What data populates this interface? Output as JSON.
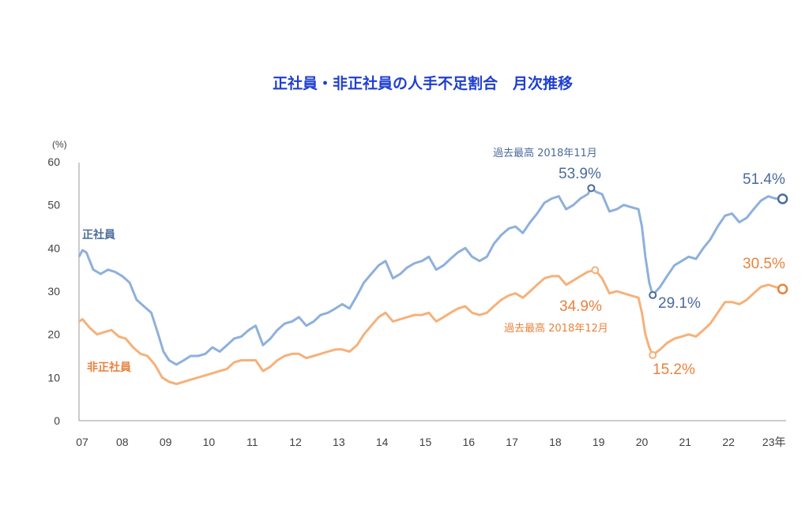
{
  "colors": {
    "regular": "#8eb0dc",
    "non_regular": "#f5b17a",
    "regular_text": "#4a6b9b",
    "non_regular_text": "#e8823c",
    "title": "#1f3fd0"
  },
  "chart_data": {
    "type": "line",
    "title": "正社員・非正社員の人手不足割合　月次推移",
    "y_unit": "(%)",
    "ylim": [
      0,
      60
    ],
    "y_ticks": [
      "0",
      "10",
      "20",
      "30",
      "40",
      "50",
      "60"
    ],
    "x_tick_labels": [
      "07",
      "08",
      "09",
      "10",
      "11",
      "12",
      "13",
      "14",
      "15",
      "16",
      "17",
      "18",
      "19",
      "20",
      "21",
      "22",
      "23年"
    ],
    "x_range": [
      2007.0,
      2023.33
    ],
    "grid": false,
    "series": [
      {
        "name": "正社員",
        "points": [
          [
            2007.0,
            38
          ],
          [
            2007.08,
            39.5
          ],
          [
            2007.17,
            39
          ],
          [
            2007.33,
            35
          ],
          [
            2007.5,
            34
          ],
          [
            2007.67,
            35
          ],
          [
            2007.83,
            34.5
          ],
          [
            2008.0,
            33.5
          ],
          [
            2008.17,
            32
          ],
          [
            2008.33,
            28
          ],
          [
            2008.5,
            26.5
          ],
          [
            2008.67,
            25
          ],
          [
            2008.83,
            20
          ],
          [
            2008.95,
            16
          ],
          [
            2009.08,
            14
          ],
          [
            2009.25,
            13
          ],
          [
            2009.42,
            14
          ],
          [
            2009.58,
            15
          ],
          [
            2009.75,
            15
          ],
          [
            2009.92,
            15.5
          ],
          [
            2010.08,
            17
          ],
          [
            2010.25,
            16
          ],
          [
            2010.42,
            17.5
          ],
          [
            2010.58,
            19
          ],
          [
            2010.75,
            19.5
          ],
          [
            2010.92,
            21
          ],
          [
            2011.08,
            22
          ],
          [
            2011.25,
            17.5
          ],
          [
            2011.42,
            19
          ],
          [
            2011.58,
            21
          ],
          [
            2011.75,
            22.5
          ],
          [
            2011.92,
            23
          ],
          [
            2012.08,
            24
          ],
          [
            2012.25,
            22
          ],
          [
            2012.42,
            23
          ],
          [
            2012.58,
            24.5
          ],
          [
            2012.75,
            25
          ],
          [
            2012.92,
            26
          ],
          [
            2013.08,
            27
          ],
          [
            2013.25,
            26
          ],
          [
            2013.42,
            29
          ],
          [
            2013.58,
            32
          ],
          [
            2013.75,
            34
          ],
          [
            2013.92,
            36
          ],
          [
            2014.08,
            37
          ],
          [
            2014.25,
            33
          ],
          [
            2014.42,
            34
          ],
          [
            2014.58,
            35.5
          ],
          [
            2014.75,
            36.5
          ],
          [
            2014.92,
            37
          ],
          [
            2015.08,
            38
          ],
          [
            2015.25,
            35
          ],
          [
            2015.42,
            36
          ],
          [
            2015.58,
            37.5
          ],
          [
            2015.75,
            39
          ],
          [
            2015.92,
            40
          ],
          [
            2016.08,
            38
          ],
          [
            2016.25,
            37
          ],
          [
            2016.42,
            38
          ],
          [
            2016.58,
            41
          ],
          [
            2016.75,
            43
          ],
          [
            2016.92,
            44.5
          ],
          [
            2017.08,
            45
          ],
          [
            2017.25,
            43.5
          ],
          [
            2017.42,
            46
          ],
          [
            2017.58,
            48
          ],
          [
            2017.75,
            50.5
          ],
          [
            2017.92,
            51.5
          ],
          [
            2018.08,
            52
          ],
          [
            2018.25,
            49
          ],
          [
            2018.42,
            50
          ],
          [
            2018.58,
            51.5
          ],
          [
            2018.75,
            52.5
          ],
          [
            2018.83,
            53.9
          ],
          [
            2018.95,
            53
          ],
          [
            2019.08,
            52.5
          ],
          [
            2019.25,
            48.5
          ],
          [
            2019.42,
            49
          ],
          [
            2019.58,
            50
          ],
          [
            2019.75,
            49.5
          ],
          [
            2019.92,
            49
          ],
          [
            2020.0,
            45
          ],
          [
            2020.08,
            38
          ],
          [
            2020.17,
            32
          ],
          [
            2020.25,
            29.1
          ],
          [
            2020.42,
            31
          ],
          [
            2020.58,
            33.5
          ],
          [
            2020.75,
            36
          ],
          [
            2020.92,
            37
          ],
          [
            2021.08,
            38
          ],
          [
            2021.25,
            37.5
          ],
          [
            2021.42,
            40
          ],
          [
            2021.58,
            42
          ],
          [
            2021.75,
            45
          ],
          [
            2021.92,
            47.5
          ],
          [
            2022.08,
            48
          ],
          [
            2022.25,
            46
          ],
          [
            2022.42,
            47
          ],
          [
            2022.58,
            49
          ],
          [
            2022.75,
            51
          ],
          [
            2022.92,
            52
          ],
          [
            2023.08,
            51.5
          ],
          [
            2023.25,
            51.4
          ]
        ]
      },
      {
        "name": "非正社員",
        "points": [
          [
            2007.0,
            23
          ],
          [
            2007.08,
            23.5
          ],
          [
            2007.25,
            21.5
          ],
          [
            2007.42,
            20
          ],
          [
            2007.58,
            20.5
          ],
          [
            2007.75,
            21
          ],
          [
            2007.92,
            19.5
          ],
          [
            2008.08,
            19
          ],
          [
            2008.25,
            17
          ],
          [
            2008.42,
            15.5
          ],
          [
            2008.58,
            15
          ],
          [
            2008.75,
            13
          ],
          [
            2008.92,
            10
          ],
          [
            2009.08,
            9
          ],
          [
            2009.25,
            8.5
          ],
          [
            2009.42,
            9
          ],
          [
            2009.58,
            9.5
          ],
          [
            2009.75,
            10
          ],
          [
            2009.92,
            10.5
          ],
          [
            2010.08,
            11
          ],
          [
            2010.25,
            11.5
          ],
          [
            2010.42,
            12
          ],
          [
            2010.58,
            13.5
          ],
          [
            2010.75,
            14
          ],
          [
            2010.92,
            14
          ],
          [
            2011.08,
            14
          ],
          [
            2011.25,
            11.5
          ],
          [
            2011.42,
            12.5
          ],
          [
            2011.58,
            14
          ],
          [
            2011.75,
            15
          ],
          [
            2011.92,
            15.5
          ],
          [
            2012.08,
            15.5
          ],
          [
            2012.25,
            14.5
          ],
          [
            2012.42,
            15
          ],
          [
            2012.58,
            15.5
          ],
          [
            2012.75,
            16
          ],
          [
            2012.92,
            16.5
          ],
          [
            2013.08,
            16.5
          ],
          [
            2013.25,
            16
          ],
          [
            2013.42,
            17.5
          ],
          [
            2013.58,
            20
          ],
          [
            2013.75,
            22
          ],
          [
            2013.92,
            24
          ],
          [
            2014.08,
            25
          ],
          [
            2014.25,
            23
          ],
          [
            2014.42,
            23.5
          ],
          [
            2014.58,
            24
          ],
          [
            2014.75,
            24.5
          ],
          [
            2014.92,
            24.5
          ],
          [
            2015.08,
            25
          ],
          [
            2015.25,
            23
          ],
          [
            2015.42,
            24
          ],
          [
            2015.58,
            25
          ],
          [
            2015.75,
            26
          ],
          [
            2015.92,
            26.5
          ],
          [
            2016.08,
            25
          ],
          [
            2016.25,
            24.5
          ],
          [
            2016.42,
            25
          ],
          [
            2016.58,
            26.5
          ],
          [
            2016.75,
            28
          ],
          [
            2016.92,
            29
          ],
          [
            2017.08,
            29.5
          ],
          [
            2017.25,
            28.5
          ],
          [
            2017.42,
            30
          ],
          [
            2017.58,
            31.5
          ],
          [
            2017.75,
            33
          ],
          [
            2017.92,
            33.5
          ],
          [
            2018.08,
            33.5
          ],
          [
            2018.25,
            31.5
          ],
          [
            2018.42,
            32.5
          ],
          [
            2018.58,
            33.5
          ],
          [
            2018.75,
            34.5
          ],
          [
            2018.92,
            34.9
          ],
          [
            2019.08,
            33
          ],
          [
            2019.25,
            29.5
          ],
          [
            2019.42,
            30
          ],
          [
            2019.58,
            29.5
          ],
          [
            2019.75,
            29
          ],
          [
            2019.92,
            28.5
          ],
          [
            2020.0,
            25
          ],
          [
            2020.08,
            20
          ],
          [
            2020.17,
            17
          ],
          [
            2020.25,
            15.2
          ],
          [
            2020.42,
            16.5
          ],
          [
            2020.58,
            18
          ],
          [
            2020.75,
            19
          ],
          [
            2020.92,
            19.5
          ],
          [
            2021.08,
            20
          ],
          [
            2021.25,
            19.5
          ],
          [
            2021.42,
            21
          ],
          [
            2021.58,
            22.5
          ],
          [
            2021.75,
            25
          ],
          [
            2021.92,
            27.5
          ],
          [
            2022.08,
            27.5
          ],
          [
            2022.25,
            27
          ],
          [
            2022.42,
            28
          ],
          [
            2022.58,
            29.5
          ],
          [
            2022.75,
            31
          ],
          [
            2022.92,
            31.5
          ],
          [
            2023.08,
            31
          ],
          [
            2023.25,
            30.5
          ]
        ]
      }
    ],
    "annotations": {
      "regular_peak_note": "過去最高 2018年11月",
      "regular_peak_value": "53.9%",
      "regular_trough_value": "29.1%",
      "regular_latest_value": "51.4%",
      "non_regular_peak_note": "過去最高 2018年12月",
      "non_regular_peak_value": "34.9%",
      "non_regular_trough_value": "15.2%",
      "non_regular_latest_value": "30.5%",
      "regular_label": "正社員",
      "non_regular_label": "非正社員"
    }
  }
}
